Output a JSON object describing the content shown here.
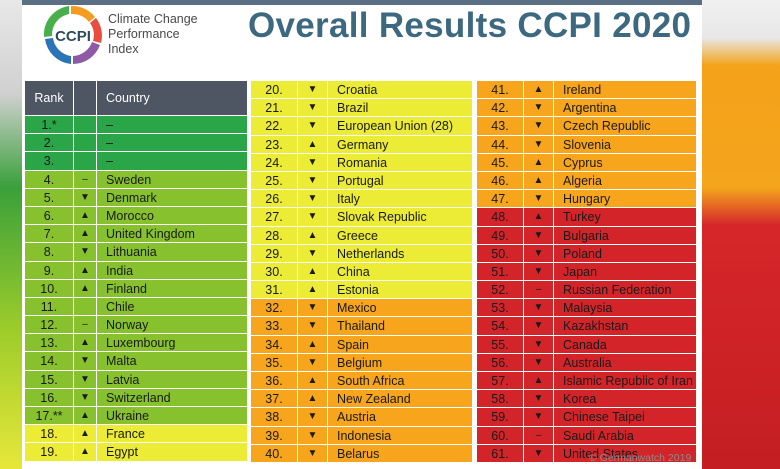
{
  "logo": {
    "acronym": "CCPI",
    "text_lines": [
      "Climate Change",
      "Performance",
      "Index"
    ]
  },
  "title": "Overall Results CCPI 2020",
  "table_header": {
    "rank": "Rank",
    "trend": "",
    "country": "Country"
  },
  "colors": {
    "dark_green": "#2aa548",
    "green": "#87c12e",
    "yellow": "#ecec36",
    "orange": "#f7a51c",
    "red": "#d3242a",
    "header": "#4e5663",
    "title": "#3d6980"
  },
  "column1": [
    {
      "rank": "1.*",
      "trend": "",
      "country": "–",
      "level": "dark_green"
    },
    {
      "rank": "2.",
      "trend": "",
      "country": "–",
      "level": "dark_green"
    },
    {
      "rank": "3.",
      "trend": "",
      "country": "–",
      "level": "dark_green"
    },
    {
      "rank": "4.",
      "trend": "–",
      "country": "Sweden",
      "level": "green"
    },
    {
      "rank": "5.",
      "trend": "▼",
      "country": "Denmark",
      "level": "green"
    },
    {
      "rank": "6.",
      "trend": "▲",
      "country": "Morocco",
      "level": "green"
    },
    {
      "rank": "7.",
      "trend": "▲",
      "country": "United Kingdom",
      "level": "green"
    },
    {
      "rank": "8.",
      "trend": "▼",
      "country": "Lithuania",
      "level": "green"
    },
    {
      "rank": "9.",
      "trend": "▲",
      "country": "India",
      "level": "green"
    },
    {
      "rank": "10.",
      "trend": "▲",
      "country": "Finland",
      "level": "green"
    },
    {
      "rank": "11.",
      "trend": "",
      "country": "Chile",
      "level": "green"
    },
    {
      "rank": "12.",
      "trend": "–",
      "country": "Norway",
      "level": "green"
    },
    {
      "rank": "13.",
      "trend": "▲",
      "country": "Luxembourg",
      "level": "green"
    },
    {
      "rank": "14.",
      "trend": "▼",
      "country": "Malta",
      "level": "green"
    },
    {
      "rank": "15.",
      "trend": "▼",
      "country": "Latvia",
      "level": "green"
    },
    {
      "rank": "16.",
      "trend": "▼",
      "country": "Switzerland",
      "level": "green"
    },
    {
      "rank": "17.**",
      "trend": "▲",
      "country": "Ukraine",
      "level": "green"
    },
    {
      "rank": "18.",
      "trend": "▲",
      "country": "France",
      "level": "yellow"
    },
    {
      "rank": "19.",
      "trend": "▲",
      "country": "Egypt",
      "level": "yellow"
    }
  ],
  "column2": [
    {
      "rank": "20.",
      "trend": "▼",
      "country": "Croatia",
      "level": "yellow"
    },
    {
      "rank": "21.",
      "trend": "▼",
      "country": "Brazil",
      "level": "yellow"
    },
    {
      "rank": "22.",
      "trend": "▼",
      "country": "European Union (28)",
      "level": "yellow"
    },
    {
      "rank": "23.",
      "trend": "▲",
      "country": "Germany",
      "level": "yellow"
    },
    {
      "rank": "24.",
      "trend": "▼",
      "country": "Romania",
      "level": "yellow"
    },
    {
      "rank": "25.",
      "trend": "▼",
      "country": "Portugal",
      "level": "yellow"
    },
    {
      "rank": "26.",
      "trend": "▼",
      "country": "Italy",
      "level": "yellow"
    },
    {
      "rank": "27.",
      "trend": "▼",
      "country": "Slovak Republic",
      "level": "yellow"
    },
    {
      "rank": "28.",
      "trend": "▲",
      "country": "Greece",
      "level": "yellow"
    },
    {
      "rank": "29.",
      "trend": "▼",
      "country": "Netherlands",
      "level": "yellow"
    },
    {
      "rank": "30.",
      "trend": "▲",
      "country": "China",
      "level": "yellow"
    },
    {
      "rank": "31.",
      "trend": "▲",
      "country": "Estonia",
      "level": "yellow"
    },
    {
      "rank": "32.",
      "trend": "▼",
      "country": "Mexico",
      "level": "orange"
    },
    {
      "rank": "33.",
      "trend": "▼",
      "country": "Thailand",
      "level": "orange"
    },
    {
      "rank": "34.",
      "trend": "▲",
      "country": "Spain",
      "level": "orange"
    },
    {
      "rank": "35.",
      "trend": "▼",
      "country": "Belgium",
      "level": "orange"
    },
    {
      "rank": "36.",
      "trend": "▲",
      "country": "South Africa",
      "level": "orange"
    },
    {
      "rank": "37.",
      "trend": "▲",
      "country": "New Zealand",
      "level": "orange"
    },
    {
      "rank": "38.",
      "trend": "▼",
      "country": "Austria",
      "level": "orange"
    },
    {
      "rank": "39.",
      "trend": "▼",
      "country": "Indonesia",
      "level": "orange"
    },
    {
      "rank": "40.",
      "trend": "▼",
      "country": "Belarus",
      "level": "orange"
    }
  ],
  "column3": [
    {
      "rank": "41.",
      "trend": "▲",
      "country": "Ireland",
      "level": "orange"
    },
    {
      "rank": "42.",
      "trend": "▼",
      "country": "Argentina",
      "level": "orange"
    },
    {
      "rank": "43.",
      "trend": "▼",
      "country": "Czech Republic",
      "level": "orange"
    },
    {
      "rank": "44.",
      "trend": "▼",
      "country": "Slovenia",
      "level": "orange"
    },
    {
      "rank": "45.",
      "trend": "▲",
      "country": "Cyprus",
      "level": "orange"
    },
    {
      "rank": "46.",
      "trend": "▲",
      "country": "Algeria",
      "level": "orange"
    },
    {
      "rank": "47.",
      "trend": "▼",
      "country": "Hungary",
      "level": "orange"
    },
    {
      "rank": "48.",
      "trend": "▲",
      "country": "Turkey",
      "level": "red"
    },
    {
      "rank": "49.",
      "trend": "▼",
      "country": "Bulgaria",
      "level": "red"
    },
    {
      "rank": "50.",
      "trend": "▼",
      "country": "Poland",
      "level": "red"
    },
    {
      "rank": "51.",
      "trend": "▼",
      "country": "Japan",
      "level": "red"
    },
    {
      "rank": "52.",
      "trend": "–",
      "country": "Russian Federation",
      "level": "red"
    },
    {
      "rank": "53.",
      "trend": "▼",
      "country": "Malaysia",
      "level": "red"
    },
    {
      "rank": "54.",
      "trend": "▼",
      "country": "Kazakhstan",
      "level": "red"
    },
    {
      "rank": "55.",
      "trend": "▼",
      "country": "Canada",
      "level": "red"
    },
    {
      "rank": "56.",
      "trend": "▼",
      "country": "Australia",
      "level": "red"
    },
    {
      "rank": "57.",
      "trend": "▲",
      "country": "Islamic Republic of Iran",
      "level": "red"
    },
    {
      "rank": "58.",
      "trend": "▼",
      "country": "Korea",
      "level": "red"
    },
    {
      "rank": "59.",
      "trend": "▼",
      "country": "Chinese Taipei",
      "level": "red"
    },
    {
      "rank": "60.",
      "trend": "–",
      "country": "Saudi Arabia",
      "level": "red"
    },
    {
      "rank": "61.",
      "trend": "▼",
      "country": "United States",
      "level": "red"
    }
  ],
  "footer": "© Germanwatch 2019"
}
